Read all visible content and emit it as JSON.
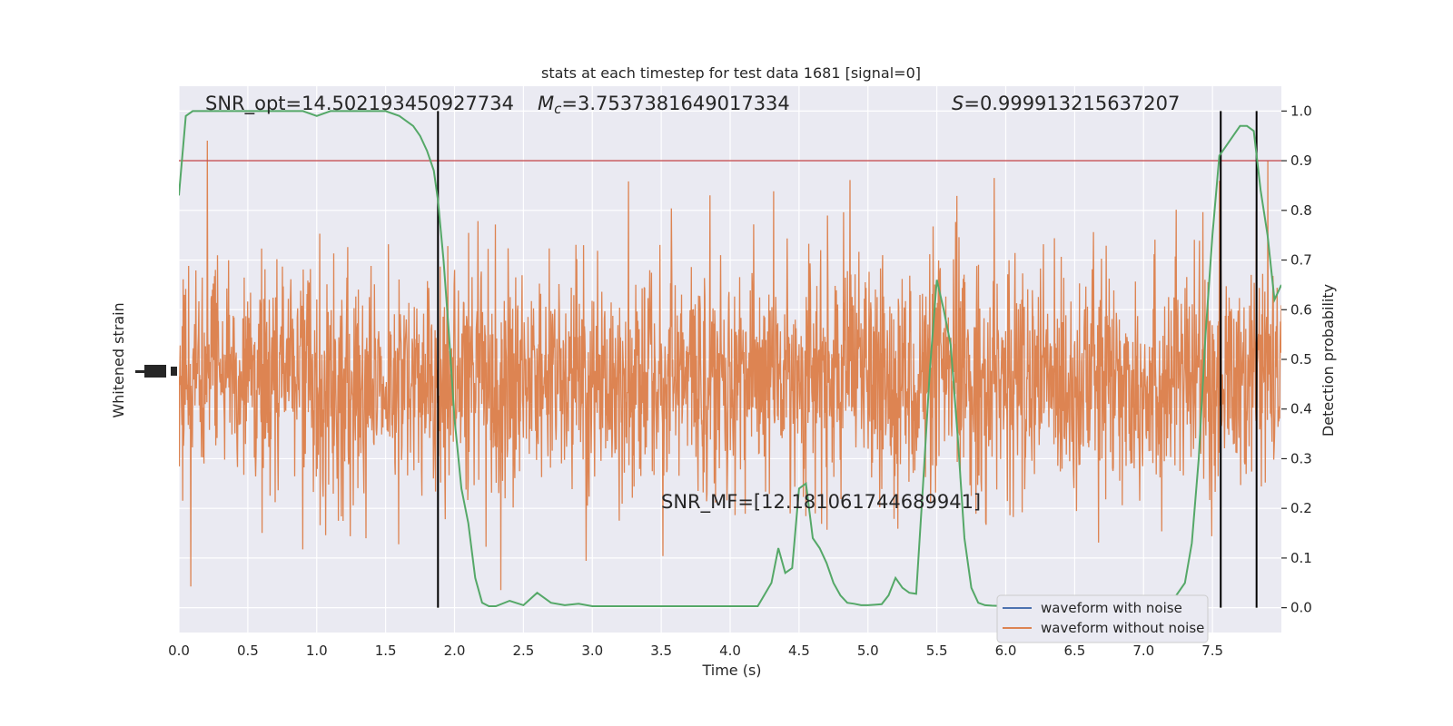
{
  "chart_data": {
    "type": "line",
    "title": "stats at each timestep for test data 1681 [signal=0]",
    "xlabel": "Time (s)",
    "ylabel_left": "Whitened strain",
    "ylabel_right": "Detection probability",
    "xlim": [
      0.0,
      8.0
    ],
    "xticks": [
      "0.0",
      "0.5",
      "1.0",
      "1.5",
      "2.0",
      "2.5",
      "3.0",
      "3.5",
      "4.0",
      "4.5",
      "5.0",
      "5.5",
      "6.0",
      "6.5",
      "7.0",
      "7.5"
    ],
    "xtick_values": [
      0,
      0.5,
      1,
      1.5,
      2,
      2.5,
      3,
      3.5,
      4,
      4.5,
      5,
      5.5,
      6,
      6.5,
      7,
      7.5
    ],
    "ylim_right": [
      -0.05,
      1.05
    ],
    "yticks_right": [
      "0.0",
      "0.1",
      "0.2",
      "0.3",
      "0.4",
      "0.5",
      "0.6",
      "0.7",
      "0.8",
      "0.9",
      "1.0"
    ],
    "ytick_values_right": [
      0,
      0.1,
      0.2,
      0.3,
      0.4,
      0.5,
      0.6,
      0.7,
      0.8,
      0.9,
      1.0
    ],
    "grid": true,
    "legend_position": "bottom-right",
    "annotations": {
      "snr_opt": "SNR_opt=14.502193450927734",
      "mc_prefix": "M",
      "mc_sub": "c",
      "mc_value": "=3.7537381649017334",
      "s_prefix": "S",
      "s_value": "=0.999913215637207",
      "snr_mf": "SNR_MF=[12.181061744689941]"
    },
    "threshold": 0.9,
    "vertical_lines": [
      1.88,
      7.56,
      7.82
    ],
    "colors": {
      "background": "#eaeaf2",
      "grid": "#ffffff",
      "with_noise": "#4c72b0",
      "without_noise": "#dd8452",
      "probability": "#55a868",
      "threshold": "#c44e52",
      "marker": "#000000"
    },
    "series": [
      {
        "name": "waveform with noise",
        "color": "#4c72b0"
      },
      {
        "name": "waveform without noise",
        "color": "#dd8452"
      }
    ],
    "probability": {
      "x": [
        0.0,
        0.05,
        0.1,
        0.15,
        0.2,
        0.3,
        0.4,
        0.5,
        0.6,
        0.7,
        0.8,
        0.9,
        1.0,
        1.1,
        1.2,
        1.3,
        1.4,
        1.5,
        1.6,
        1.65,
        1.7,
        1.75,
        1.8,
        1.85,
        1.88,
        1.92,
        1.96,
        2.0,
        2.05,
        2.1,
        2.15,
        2.2,
        2.25,
        2.3,
        2.4,
        2.5,
        2.6,
        2.7,
        2.8,
        2.9,
        3.0,
        3.1,
        3.2,
        3.3,
        3.4,
        3.5,
        3.6,
        3.7,
        3.8,
        3.9,
        4.0,
        4.1,
        4.2,
        4.3,
        4.35,
        4.4,
        4.45,
        4.5,
        4.55,
        4.6,
        4.65,
        4.7,
        4.75,
        4.8,
        4.85,
        4.9,
        4.95,
        5.0,
        5.05,
        5.1,
        5.15,
        5.2,
        5.25,
        5.3,
        5.35,
        5.4,
        5.45,
        5.5,
        5.55,
        5.6,
        5.65,
        5.7,
        5.75,
        5.8,
        5.85,
        5.9,
        6.0,
        6.2,
        6.4,
        6.6,
        6.8,
        7.0,
        7.1,
        7.2,
        7.3,
        7.35,
        7.4,
        7.45,
        7.5,
        7.55,
        7.6,
        7.65,
        7.7,
        7.75,
        7.8,
        7.85,
        7.9,
        7.95,
        8.0
      ],
      "y": [
        0.83,
        0.99,
        1.0,
        1.0,
        1.0,
        1.0,
        1.0,
        1.0,
        1.0,
        1.0,
        1.0,
        1.0,
        0.99,
        1.0,
        1.0,
        1.0,
        1.0,
        1.0,
        0.99,
        0.98,
        0.97,
        0.95,
        0.92,
        0.88,
        0.82,
        0.7,
        0.55,
        0.38,
        0.24,
        0.17,
        0.06,
        0.01,
        0.003,
        0.003,
        0.014,
        0.005,
        0.03,
        0.01,
        0.005,
        0.008,
        0.003,
        0.003,
        0.003,
        0.003,
        0.003,
        0.003,
        0.003,
        0.003,
        0.003,
        0.003,
        0.003,
        0.003,
        0.003,
        0.05,
        0.12,
        0.07,
        0.08,
        0.24,
        0.25,
        0.14,
        0.12,
        0.09,
        0.05,
        0.025,
        0.01,
        0.008,
        0.005,
        0.005,
        0.006,
        0.007,
        0.025,
        0.06,
        0.04,
        0.03,
        0.028,
        0.25,
        0.48,
        0.66,
        0.6,
        0.53,
        0.35,
        0.14,
        0.04,
        0.01,
        0.005,
        0.004,
        0.003,
        0.005,
        0.01,
        0.02,
        0.02,
        0.005,
        0.005,
        0.01,
        0.05,
        0.13,
        0.3,
        0.55,
        0.75,
        0.91,
        0.93,
        0.95,
        0.97,
        0.97,
        0.96,
        0.84,
        0.75,
        0.62,
        0.65
      ]
    }
  }
}
